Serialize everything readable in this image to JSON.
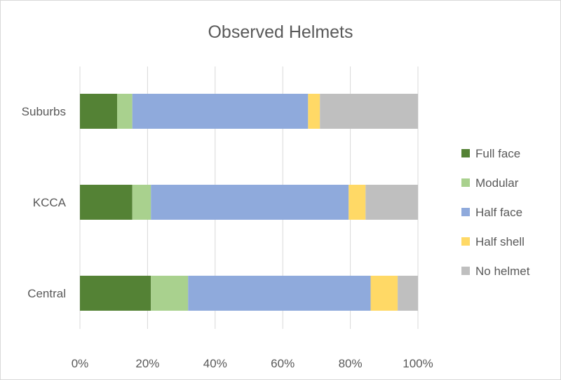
{
  "chart_data": {
    "type": "bar",
    "orientation": "horizontal",
    "stacked": "percent",
    "title": "Observed Helmets",
    "categories": [
      "Suburbs",
      "KCCA",
      "Central"
    ],
    "series": [
      {
        "name": "Full face",
        "color": "#548235",
        "values": [
          11,
          15.5,
          21
        ]
      },
      {
        "name": "Modular",
        "color": "#a9d18e",
        "values": [
          4.5,
          5.5,
          11
        ]
      },
      {
        "name": "Half face",
        "color": "#8faadc",
        "values": [
          52,
          58.5,
          54
        ]
      },
      {
        "name": "Half shell",
        "color": "#ffd966",
        "values": [
          3.5,
          5,
          8
        ]
      },
      {
        "name": "No helmet",
        "color": "#bfbfbf",
        "values": [
          29,
          15.5,
          6
        ]
      }
    ],
    "xlim": [
      0,
      100
    ],
    "xticks": [
      "0%",
      "20%",
      "40%",
      "60%",
      "80%",
      "100%"
    ],
    "grid": true,
    "legend_position": "right"
  }
}
